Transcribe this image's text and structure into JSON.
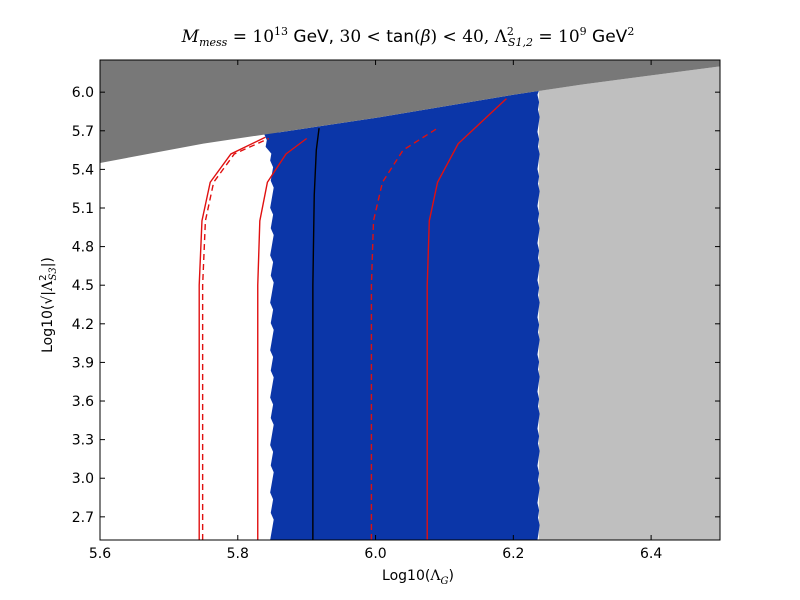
{
  "chart_data": {
    "type": "heatmap",
    "title": "M_mess = 10^13 GeV, 30 < tan(β) < 40, Λ²_S1,2 = 10^9 GeV²",
    "xlabel": "Log10(Λ_G)",
    "ylabel": "Log10(√|Λ²_S3|)",
    "xlim": [
      5.6,
      6.5
    ],
    "ylim": [
      2.52,
      6.25
    ],
    "x_ticks": [
      "5.6",
      "5.8",
      "6.0",
      "6.2",
      "6.4"
    ],
    "y_ticks": [
      "2.7",
      "3.0",
      "3.3",
      "3.6",
      "3.9",
      "4.2",
      "4.5",
      "4.8",
      "5.1",
      "5.4",
      "5.7",
      "6.0"
    ],
    "x_tick_values": [
      5.6,
      5.8,
      6.0,
      6.2,
      6.4
    ],
    "y_tick_values": [
      2.7,
      3.0,
      3.3,
      3.6,
      3.9,
      4.2,
      4.5,
      4.8,
      5.1,
      5.4,
      5.7,
      6.0
    ],
    "regions": [
      {
        "name": "excluded-dark",
        "color": "#787878",
        "boundary": [
          [
            5.6,
            5.45
          ],
          [
            5.75,
            5.6
          ],
          [
            5.9,
            5.72
          ],
          [
            6.0,
            5.8
          ],
          [
            6.2,
            5.98
          ],
          [
            6.3,
            6.06
          ],
          [
            6.5,
            6.2
          ]
        ]
      },
      {
        "name": "allowed-blue",
        "color": "#0b36a8",
        "x_min_upper": 5.85,
        "x_min_lower": 5.848,
        "x_max": 6.237
      },
      {
        "name": "excluded-light",
        "color": "#bfbfbf",
        "x_min": 6.237
      }
    ],
    "series": [
      {
        "color": "#000000",
        "style": "solid",
        "x": [
          5.909,
          5.909,
          5.911,
          5.914,
          5.918
        ],
        "y": [
          2.52,
          4.5,
          5.2,
          5.55,
          5.72
        ]
      },
      {
        "color": "#e01010",
        "style": "solid",
        "x": [
          5.744,
          5.744,
          5.748,
          5.76,
          5.79,
          5.84
        ],
        "y": [
          2.52,
          4.5,
          5.0,
          5.3,
          5.52,
          5.65
        ]
      },
      {
        "color": "#e01010",
        "style": "dashed",
        "x": [
          5.749,
          5.749,
          5.753,
          5.765,
          5.795,
          5.845
        ],
        "y": [
          2.52,
          4.5,
          5.0,
          5.3,
          5.52,
          5.64
        ]
      },
      {
        "color": "#e01010",
        "style": "solid",
        "x": [
          5.829,
          5.829,
          5.832,
          5.843,
          5.87,
          5.9
        ],
        "y": [
          2.52,
          4.5,
          5.0,
          5.3,
          5.52,
          5.64
        ]
      },
      {
        "color": "#e01010",
        "style": "dashed",
        "x": [
          5.994,
          5.994,
          5.997,
          6.01,
          6.04,
          6.09
        ],
        "y": [
          2.52,
          4.5,
          5.0,
          5.3,
          5.55,
          5.72
        ]
      },
      {
        "color": "#e01010",
        "style": "solid",
        "x": [
          6.075,
          6.075,
          6.078,
          6.09,
          6.12,
          6.19
        ],
        "y": [
          2.52,
          4.5,
          5.0,
          5.3,
          5.6,
          5.95
        ]
      }
    ]
  }
}
